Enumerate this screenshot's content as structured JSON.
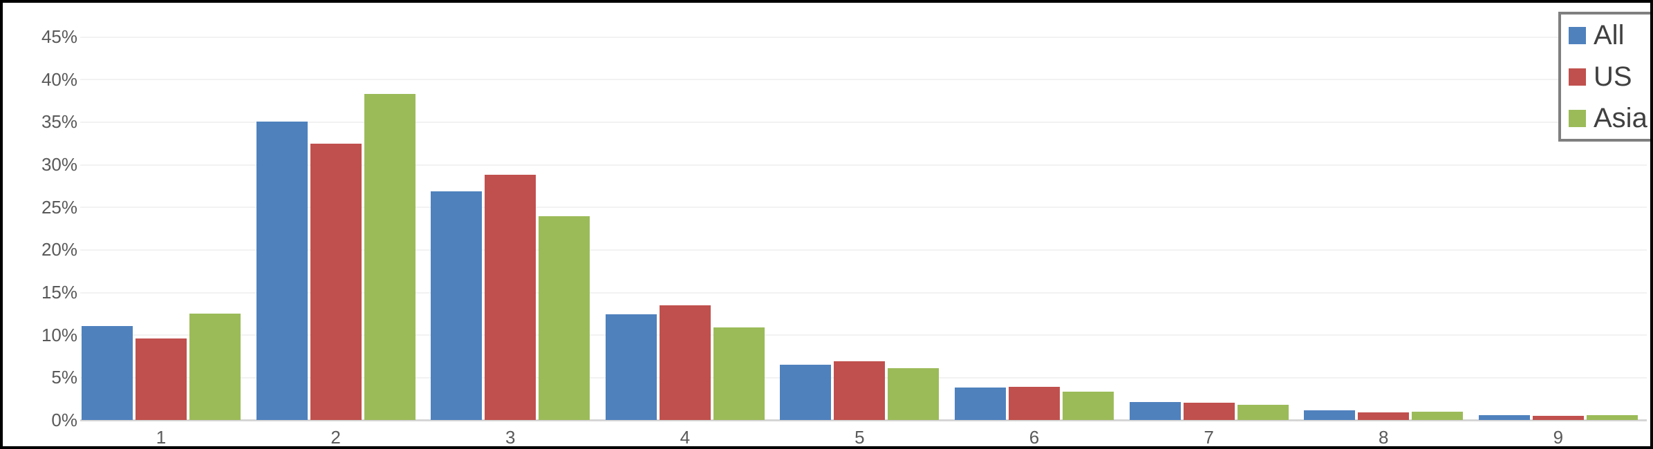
{
  "chart_data": {
    "type": "bar",
    "title": "",
    "xlabel": "",
    "ylabel": "",
    "categories": [
      "1",
      "2",
      "3",
      "4",
      "5",
      "6",
      "7",
      "8",
      "9"
    ],
    "series": [
      {
        "name": "All",
        "color": "#4F81BD",
        "values": [
          11.0,
          35.0,
          26.8,
          12.4,
          6.5,
          3.8,
          2.1,
          1.1,
          0.6
        ]
      },
      {
        "name": "US",
        "color": "#C0504D",
        "values": [
          9.6,
          32.4,
          28.8,
          13.5,
          6.9,
          3.9,
          2.0,
          0.9,
          0.5
        ]
      },
      {
        "name": "Asia",
        "color": "#9BBB59",
        "values": [
          12.5,
          38.3,
          23.9,
          10.9,
          6.1,
          3.3,
          1.8,
          1.0,
          0.6
        ]
      }
    ],
    "ylim": [
      0,
      45
    ],
    "y_tick_step": 5,
    "y_tick_labels": [
      "0%",
      "5%",
      "10%",
      "15%",
      "20%",
      "25%",
      "30%",
      "35%",
      "40%",
      "45%"
    ],
    "grid": true,
    "legend_position": "top-right"
  },
  "colors": {
    "background": "#FFFFFF",
    "frame_border": "#000000",
    "gridline": "#F2F2F2",
    "axis_line": "#D6D6D6",
    "tick_text": "#595959",
    "legend_text": "#404040",
    "legend_border": "#7F7F7F"
  }
}
